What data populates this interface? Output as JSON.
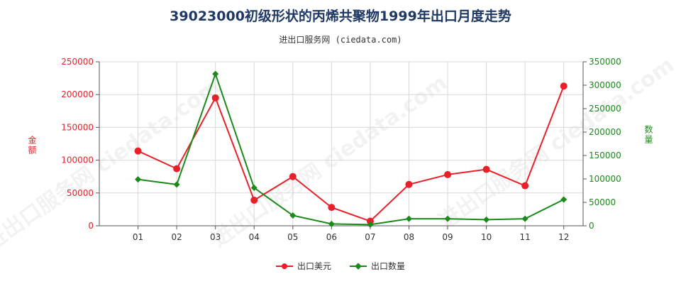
{
  "header": {
    "title": "39023000初级形状的丙烯共聚物1999年出口月度走势",
    "subtitle": "进出口服务网 (ciedata.com)"
  },
  "watermark": "进出口服务网 ciedata.com",
  "colors": {
    "usd": "#e8202a",
    "qty": "#1a8a1a",
    "grid": "#d8d8d8",
    "axis": "#555555"
  },
  "chart_data": {
    "type": "line",
    "categories": [
      "01",
      "02",
      "03",
      "04",
      "05",
      "06",
      "07",
      "08",
      "09",
      "10",
      "11",
      "12"
    ],
    "series": [
      {
        "name": "出口美元",
        "axis": "left",
        "values": [
          114000,
          87000,
          195000,
          39000,
          75000,
          28000,
          7000,
          63000,
          78000,
          86000,
          61000,
          213000
        ]
      },
      {
        "name": "出口数量",
        "axis": "right",
        "values": [
          99000,
          88000,
          324000,
          81000,
          22000,
          4000,
          2500,
          15000,
          15000,
          13000,
          15000,
          56000
        ]
      }
    ],
    "left_axis": {
      "label": "金额",
      "min": 0,
      "max": 250000,
      "ticks": [
        0,
        50000,
        100000,
        150000,
        200000,
        250000
      ]
    },
    "right_axis": {
      "label": "数量",
      "min": 0,
      "max": 350000,
      "ticks": [
        0,
        50000,
        100000,
        150000,
        200000,
        250000,
        300000,
        350000
      ]
    },
    "grid": true,
    "legend": "bottom"
  }
}
